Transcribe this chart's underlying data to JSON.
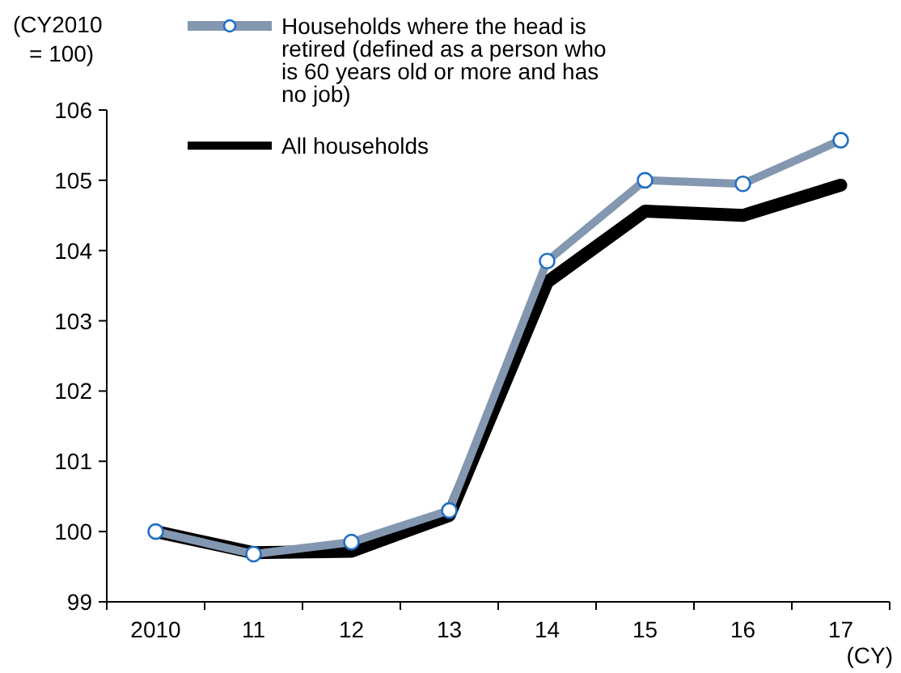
{
  "chart_data": {
    "type": "line",
    "ylabel": "(CY2010\n= 100)",
    "xlabel": "(CY)",
    "categories": [
      "2010",
      "11",
      "12",
      "13",
      "14",
      "15",
      "16",
      "17"
    ],
    "series": [
      {
        "name": "Households where the head is retired (defined as a person who is 60 years old or more and has no job)",
        "color": "#8497b0",
        "marker": "circle",
        "values": [
          100.0,
          99.68,
          99.85,
          100.3,
          103.85,
          105.0,
          104.95,
          105.57
        ]
      },
      {
        "name": "All households",
        "color": "#000000",
        "marker": "none",
        "values": [
          100.0,
          99.7,
          99.72,
          100.23,
          103.55,
          104.56,
          104.5,
          104.93
        ]
      }
    ],
    "ylim": [
      99,
      106
    ],
    "yticks": [
      99,
      100,
      101,
      102,
      103,
      104,
      105,
      106
    ],
    "grid": false,
    "legend": "top left",
    "line_style": "solid"
  }
}
